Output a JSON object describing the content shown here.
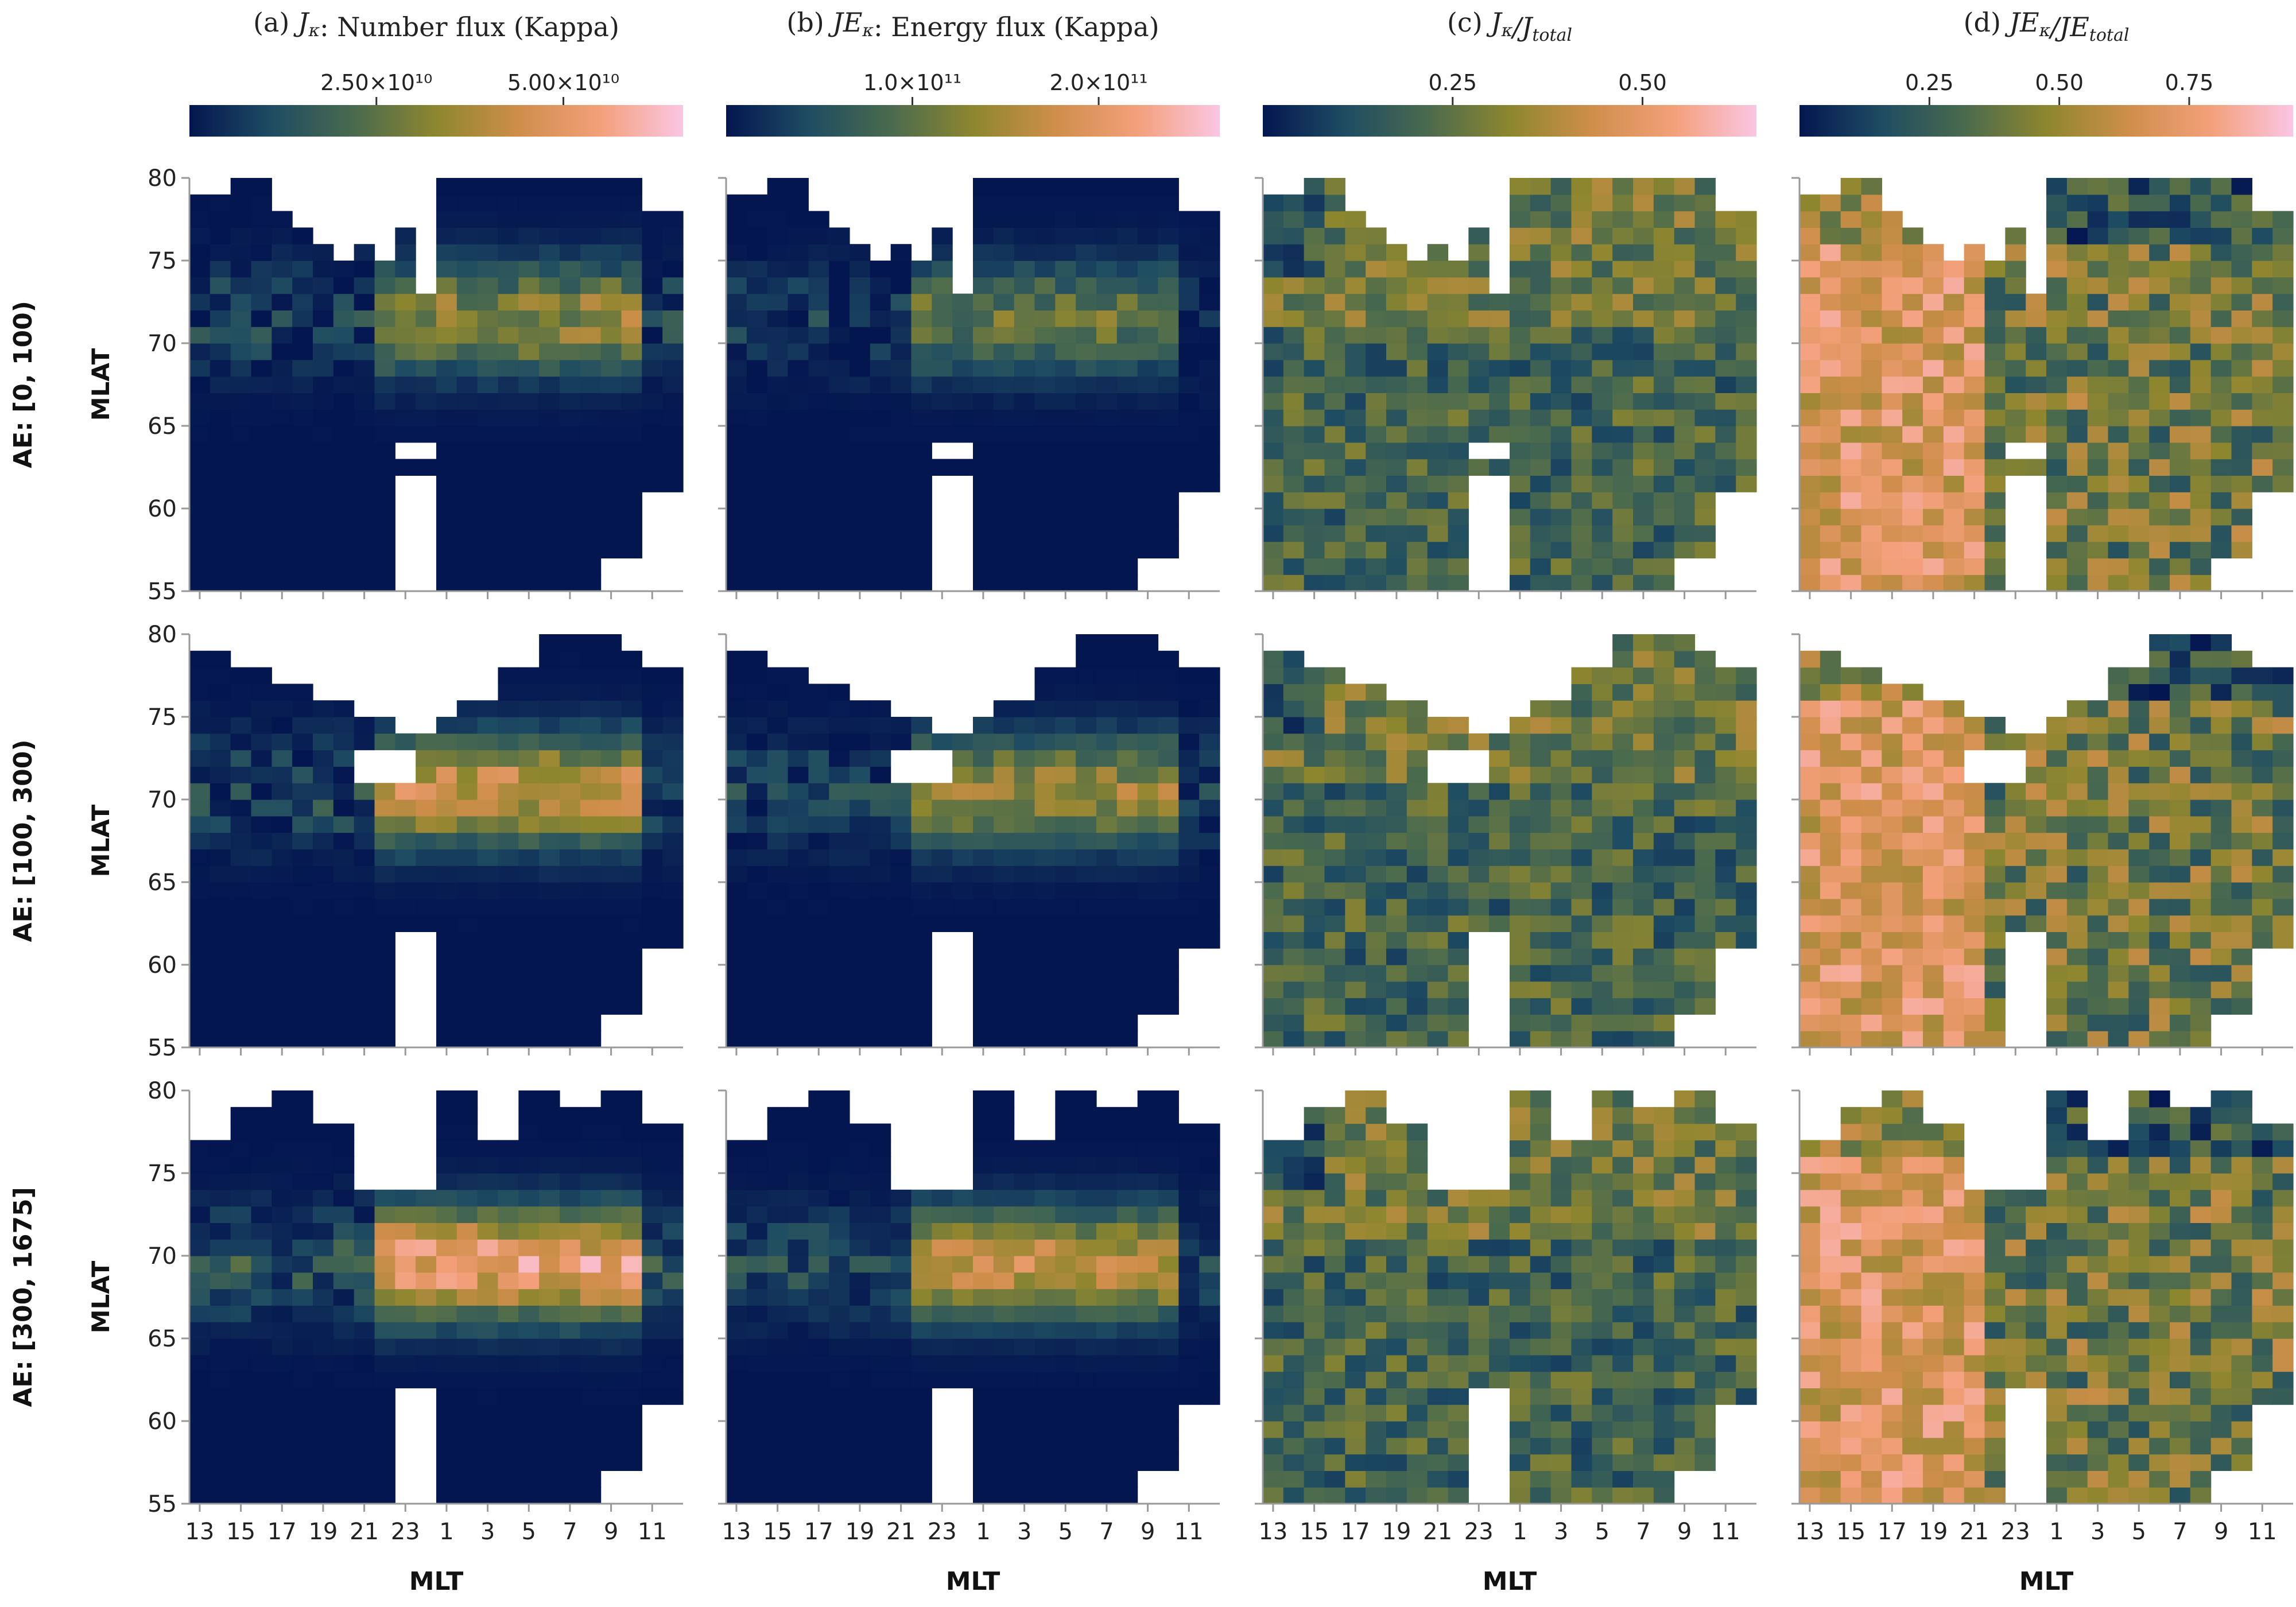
{
  "chart_data": {
    "type": "heatmap",
    "columns": [
      {
        "letter": "(a)",
        "symbol": "Jκ",
        "colon": ":",
        "desc": "Number flux (Kappa)",
        "cbar_ticks": [
          "2.50×10¹⁰",
          "5.00×10¹⁰"
        ],
        "cbar_tick_vals": [
          25000000000.0,
          50000000000.0
        ],
        "cbar_range": [
          0,
          66000000000.0
        ]
      },
      {
        "letter": "(b)",
        "symbol": "JEκ",
        "colon": ":",
        "desc": "Energy flux (Kappa)",
        "cbar_ticks": [
          "1.0×10¹¹",
          "2.0×10¹¹"
        ],
        "cbar_tick_vals": [
          100000000000.0,
          200000000000.0
        ],
        "cbar_range": [
          0,
          265000000000.0
        ]
      },
      {
        "letter": "(c)",
        "symbol": "Jκ/Jtotal",
        "colon": "",
        "desc": "",
        "cbar_ticks": [
          "0.25",
          "0.50"
        ],
        "cbar_tick_vals": [
          0.25,
          0.5
        ],
        "cbar_range": [
          0,
          0.65
        ]
      },
      {
        "letter": "(d)",
        "symbol": "JEκ/JEtotal",
        "colon": "",
        "desc": "",
        "cbar_ticks": [
          "0.25",
          "0.50",
          "0.75"
        ],
        "cbar_tick_vals": [
          0.25,
          0.5,
          0.75
        ],
        "cbar_range": [
          0,
          0.95
        ]
      }
    ],
    "rows": [
      "AE: [0, 100)",
      "AE: [100, 300)",
      "AE: [300, 1675]"
    ],
    "ylabel": "MLAT",
    "xlabel": "MLT",
    "yticks": [
      "55",
      "60",
      "65",
      "70",
      "75",
      "80"
    ],
    "ylim": [
      55,
      80
    ],
    "xticks": [
      "13",
      "15",
      "17",
      "19",
      "21",
      "23",
      "1",
      "3",
      "5",
      "7",
      "9",
      "11"
    ],
    "mlt_bins": [
      12,
      13,
      14,
      15,
      16,
      17,
      18,
      19,
      20,
      21,
      22,
      23,
      0,
      1,
      2,
      3,
      4,
      5,
      6,
      7,
      8,
      9,
      10,
      11
    ],
    "mlat_bin_width": 1,
    "colormap": [
      "#041650",
      "#1e4c62",
      "#4a6a4e",
      "#8d862f",
      "#cf8e4b",
      "#f3a07a",
      "#fbc6e4"
    ],
    "note": "cell values estimated from colors"
  }
}
